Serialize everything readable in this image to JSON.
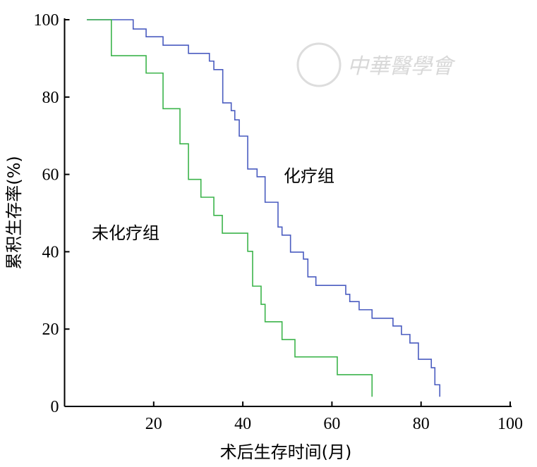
{
  "chart_data": {
    "type": "line",
    "step": true,
    "xlabel": "术后生存时间(月)",
    "ylabel": "累积生存率(%)",
    "xlim": [
      0,
      100
    ],
    "ylim": [
      0,
      100
    ],
    "xticks": [
      "20",
      "40",
      "60",
      "80",
      "100"
    ],
    "yticks": [
      "0",
      "20",
      "40",
      "60",
      "80",
      "100"
    ],
    "grid": false,
    "watermark": "中華醫學會",
    "series": [
      {
        "name": "化疗组",
        "color": "#4a5cc0",
        "x": [
          5.0,
          15.4,
          18.3,
          22.1,
          27.8,
          32.5,
          33.5,
          35.5,
          37.4,
          38.2,
          39.2,
          41.1,
          43.2,
          45.0,
          47.9,
          48.8,
          50.7,
          53.6,
          54.6,
          56.4,
          63.1,
          64.0,
          66.1,
          69.0,
          73.7,
          75.6,
          77.5,
          79.4,
          82.3,
          83.1,
          84.2
        ],
        "y": [
          100,
          97.6,
          95.6,
          93.4,
          91.3,
          89.3,
          87.1,
          78.5,
          76.5,
          74.1,
          69.9,
          61.4,
          59.4,
          52.8,
          46.4,
          44.3,
          39.9,
          38.1,
          33.5,
          31.3,
          29.0,
          27.1,
          25.0,
          22.8,
          20.8,
          18.6,
          16.4,
          12.2,
          10.0,
          5.6,
          4.0
        ]
      },
      {
        "name": "未化疗组",
        "color": "#3cb44b",
        "x": [
          5.0,
          10.5,
          18.3,
          22.1,
          25.9,
          27.8,
          30.6,
          33.5,
          35.4,
          41.1,
          42.2,
          44.1,
          45.0,
          48.8,
          51.7,
          61.2,
          69.0
        ],
        "y": [
          100,
          90.7,
          86.2,
          77.0,
          67.9,
          58.7,
          54.1,
          49.4,
          44.8,
          40.1,
          31.1,
          26.4,
          21.9,
          17.3,
          12.8,
          8.2,
          4.0
        ]
      }
    ]
  }
}
